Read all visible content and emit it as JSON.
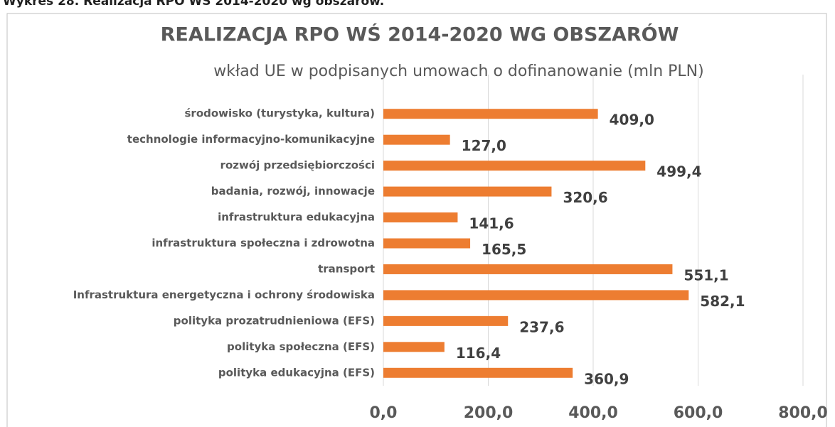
{
  "caption": "Wykres 28. Realizacja RPO WŚ 2014-2020 wg obszarów.",
  "chart_data": {
    "type": "hbar",
    "title": "REALIZACJA RPO WŚ 2014-2020 WG OBSZARÓW",
    "subtitle": "wkład UE w podpisanych umowach o dofinanowanie (mln PLN)",
    "categories": [
      "środowisko (turystyka, kultura)",
      "technologie informacyjno-komunikacyjne",
      "rozwój przedsiębiorczości",
      "badania, rozwój, innowacje",
      "infrastruktura edukacyjna",
      "infrastruktura społeczna i zdrowotna",
      "transport",
      "Infrastruktura energetyczna i ochrony środowiska",
      "polityka prozatrudnieniowa (EFS)",
      "polityka społeczna (EFS)",
      "polityka edukacyjna (EFS)"
    ],
    "values": [
      409.0,
      127.0,
      499.4,
      320.6,
      141.6,
      165.5,
      551.1,
      582.1,
      237.6,
      116.4,
      360.9
    ],
    "value_labels": [
      "409,0",
      "127,0",
      "499,4",
      "320,6",
      "141,6",
      "165,5",
      "551,1",
      "582,1",
      "237,6",
      "116,4",
      "360,9"
    ],
    "color": "#ed7d31",
    "xlim": [
      0,
      800
    ],
    "xticks": [
      {
        "value": 0,
        "label": "0,0"
      },
      {
        "value": 200,
        "label": "200,0"
      },
      {
        "value": 400,
        "label": "400,0"
      },
      {
        "value": 600,
        "label": "600,0"
      },
      {
        "value": 800,
        "label": "800,0"
      }
    ],
    "grid": true
  }
}
